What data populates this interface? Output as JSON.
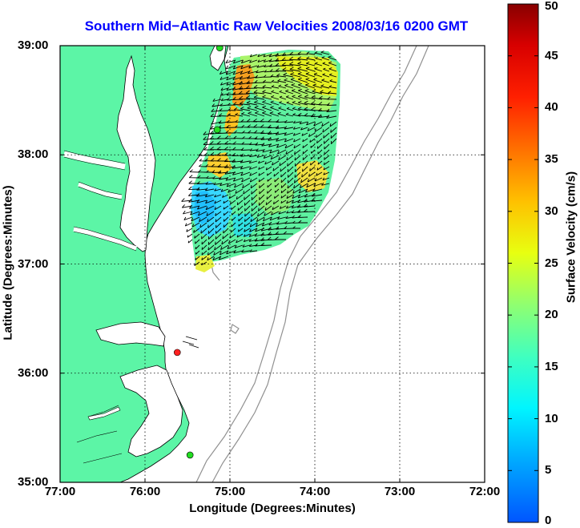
{
  "title": "Southern Mid−Atlantic Raw Velocities 2008/03/16 0200 GMT",
  "colors": {
    "title": "#0000ff",
    "land": "#5cf5a6",
    "ocean": "#ffffff",
    "coastline": "#000000",
    "bathymetry": "#909090",
    "gridlines": "#000000",
    "site_active": "#22dd22",
    "site_inactive": "#ff2020"
  },
  "map": {
    "x_axis": {
      "label": "Longitude (Degrees:Minutes)",
      "range": [
        -77,
        -72
      ],
      "ticks": [
        {
          "value": -77,
          "label": "77:00"
        },
        {
          "value": -76,
          "label": "76:00"
        },
        {
          "value": -75,
          "label": "75:00"
        },
        {
          "value": -74,
          "label": "74:00"
        },
        {
          "value": -73,
          "label": "73:00"
        },
        {
          "value": -72,
          "label": "72:00"
        }
      ]
    },
    "y_axis": {
      "label": "Latitude (Degrees:Minutes)",
      "range": [
        35,
        39
      ],
      "ticks": [
        {
          "value": 39,
          "label": "39:00"
        },
        {
          "value": 38,
          "label": "38:00"
        },
        {
          "value": 37,
          "label": "37:00"
        },
        {
          "value": 36,
          "label": "36:00"
        },
        {
          "value": 35,
          "label": "35:00"
        }
      ]
    },
    "grid": "dotted",
    "sites": [
      {
        "lon": -75.12,
        "lat": 38.98,
        "status": "active"
      },
      {
        "lon": -75.15,
        "lat": 38.23,
        "status": "active"
      },
      {
        "lon": -75.62,
        "lat": 36.19,
        "status": "inactive"
      },
      {
        "lon": -75.47,
        "lat": 35.25,
        "status": "active"
      }
    ]
  },
  "colorbar": {
    "label": "Surface Velocity (cm/s)",
    "range": [
      0,
      50
    ],
    "ticks": [
      {
        "value": 50,
        "label": "50"
      },
      {
        "value": 45,
        "label": "45"
      },
      {
        "value": 40,
        "label": "40"
      },
      {
        "value": 35,
        "label": "35"
      },
      {
        "value": 30,
        "label": "30"
      },
      {
        "value": 25,
        "label": "25"
      },
      {
        "value": 20,
        "label": "20"
      },
      {
        "value": 15,
        "label": "15"
      },
      {
        "value": 10,
        "label": "10"
      },
      {
        "value": 5,
        "label": "5"
      },
      {
        "value": 0,
        "label": "0"
      }
    ]
  }
}
